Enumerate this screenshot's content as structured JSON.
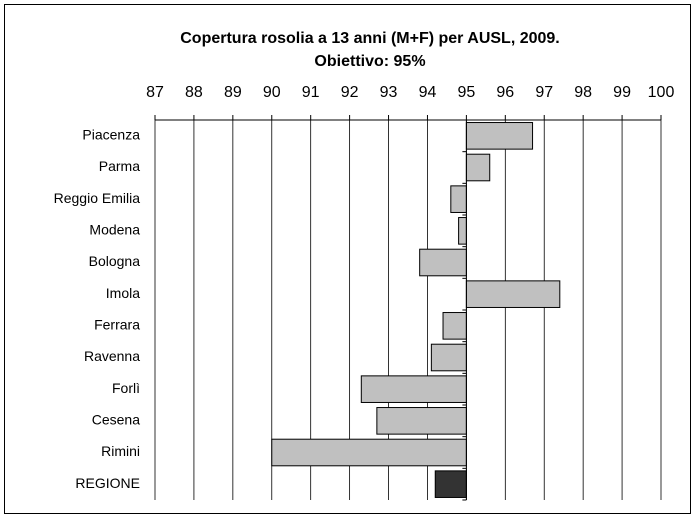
{
  "chart_data": {
    "type": "bar",
    "orientation": "horizontal",
    "title": "Copertura rosolia a 13 anni (M+F) per AUSL, 2009.",
    "subtitle": "Obiettivo: 95%",
    "categories": [
      "Piacenza",
      "Parma",
      "Reggio Emilia",
      "Modena",
      "Bologna",
      "Imola",
      "Ferrara",
      "Ravenna",
      "Forlì",
      "Cesena",
      "Rimini",
      "REGIONE"
    ],
    "values": [
      96.7,
      95.6,
      94.6,
      94.8,
      93.8,
      97.4,
      94.4,
      94.1,
      92.3,
      92.7,
      90.0,
      94.2
    ],
    "colors": [
      "#c0c0c0",
      "#c0c0c0",
      "#c0c0c0",
      "#c0c0c0",
      "#c0c0c0",
      "#c0c0c0",
      "#c0c0c0",
      "#c0c0c0",
      "#c0c0c0",
      "#c0c0c0",
      "#c0c0c0",
      "#333333"
    ],
    "base": 95,
    "xlim": [
      87,
      100
    ],
    "xticks": [
      87,
      88,
      89,
      90,
      91,
      92,
      93,
      94,
      95,
      96,
      97,
      98,
      99,
      100
    ],
    "grid": true
  }
}
